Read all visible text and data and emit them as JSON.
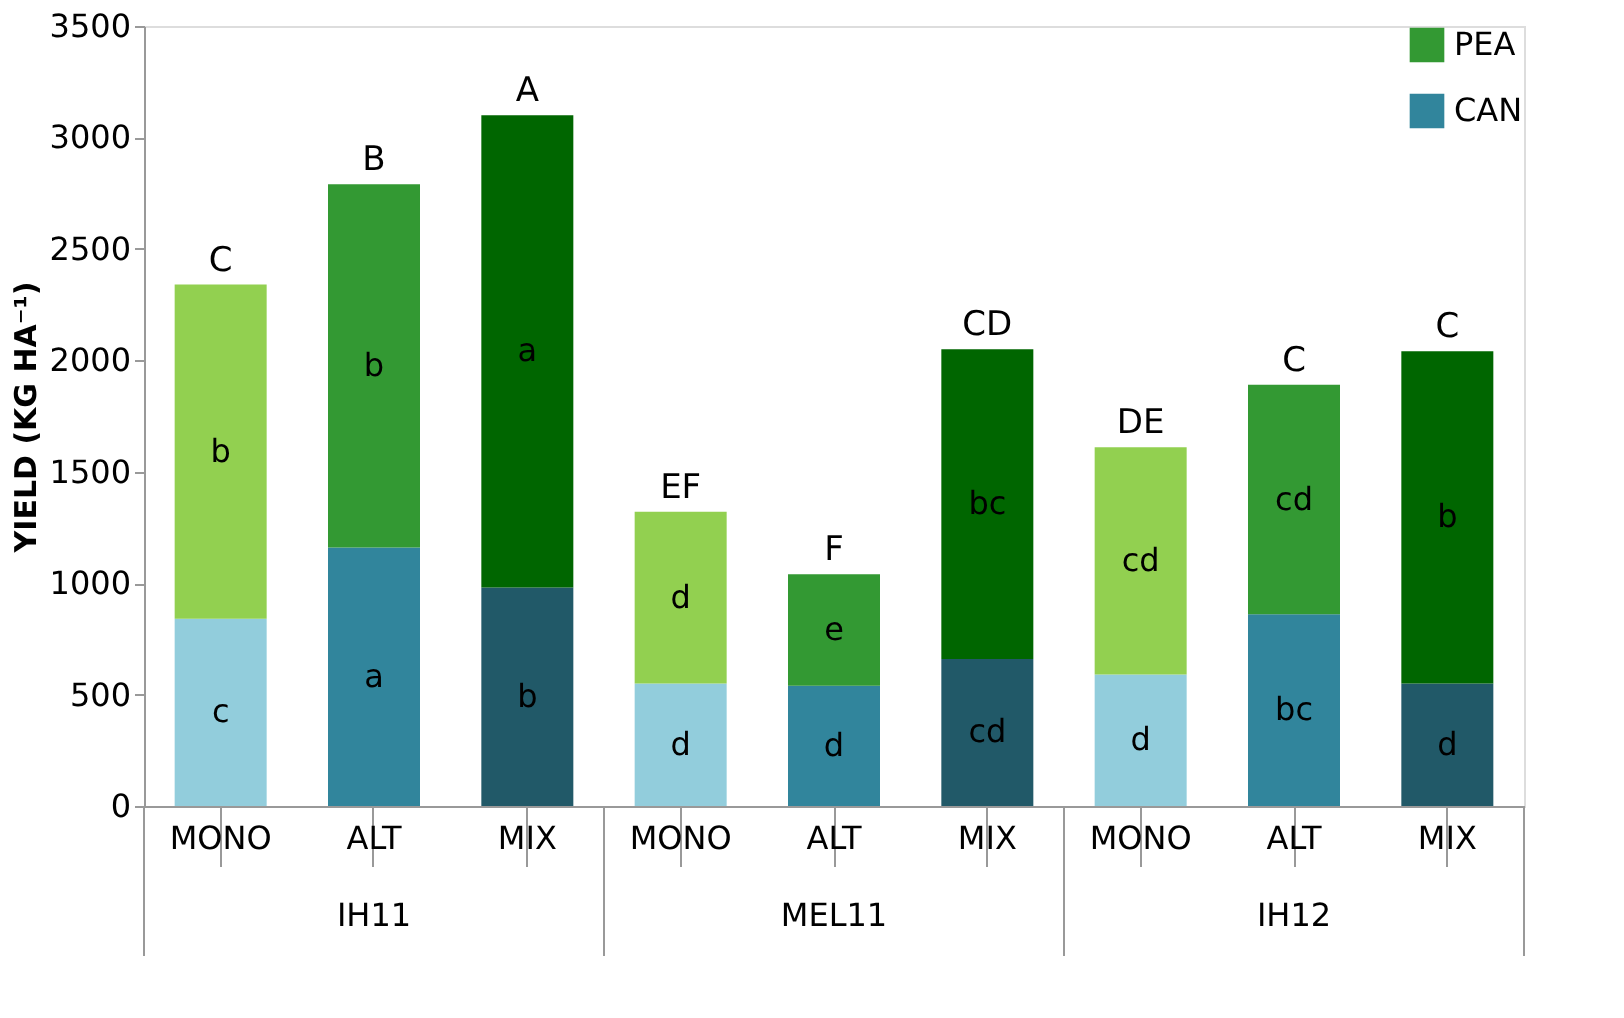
{
  "chart_data": {
    "type": "bar",
    "stacked": true,
    "ylabel": "YIELD (KG HA⁻¹)",
    "categories": [
      "MONO",
      "ALT",
      "MIX",
      "MONO",
      "ALT",
      "MIX",
      "MONO",
      "ALT",
      "MIX"
    ],
    "series": [
      {
        "name": "CAN",
        "color": "#31859c",
        "colors": [
          "#92cddc",
          "#31859c",
          "#215968",
          "#92cddc",
          "#31859c",
          "#215968",
          "#92cddc",
          "#31859c",
          "#215968"
        ],
        "values": [
          840,
          1160,
          980,
          550,
          540,
          660,
          590,
          860,
          550
        ],
        "value_labels": [
          "c",
          "a",
          "b",
          "d",
          "d",
          "cd",
          "d",
          "bc",
          "d"
        ]
      },
      {
        "name": "PEA",
        "color": "#339933",
        "colors": [
          "#92d050",
          "#339933",
          "#006600",
          "#92d050",
          "#339933",
          "#006600",
          "#92d050",
          "#339933",
          "#006600"
        ],
        "values": [
          1500,
          1630,
          2120,
          770,
          500,
          1390,
          1020,
          1030,
          1490
        ],
        "value_labels": [
          "b",
          "b",
          "a",
          "d",
          "e",
          "bc",
          "cd",
          "cd",
          "b"
        ]
      }
    ],
    "totals": [
      "C",
      "B",
      "A",
      "EF",
      "F",
      "CD",
      "DE",
      "C",
      "C"
    ],
    "annotations": [
      "IH11",
      "MEL11",
      "IH12"
    ],
    "ylim": [
      0,
      3500
    ],
    "yticks": [
      0,
      500,
      1000,
      1500,
      2000,
      2500,
      3000,
      3500
    ],
    "grid": false,
    "legend": "top right"
  }
}
